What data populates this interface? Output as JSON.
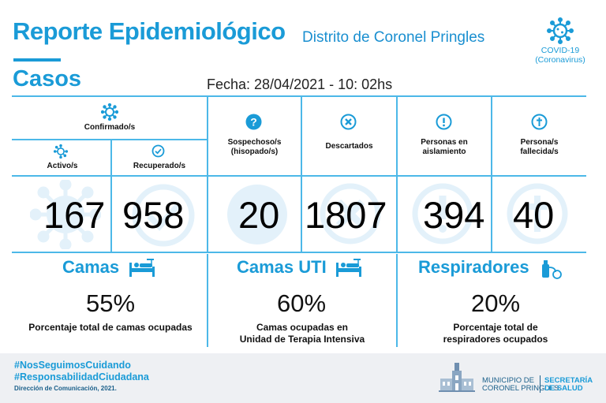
{
  "header": {
    "title": "Reporte Epidemiológico",
    "district": "Distrito de Coronel Pringles",
    "covid_line1": "COVID-19",
    "covid_line2": "(Coronavirus)",
    "section": "Casos",
    "fecha": "Fecha: 28/04/2021 - 10: 02hs"
  },
  "casos": {
    "confirmados_label": "Confirmado/s",
    "activos_label": "Activo/s",
    "recuperados_label": "Recuperado/s",
    "sospechosos_label_1": "Sospechoso/s",
    "sospechosos_label_2": "(hisopado/s)",
    "descartados_label": "Descartados",
    "aislamiento_label_1": "Personas en",
    "aislamiento_label_2": "aislamiento",
    "fallecidos_label_1": "Persona/s",
    "fallecidos_label_2": "fallecida/s",
    "activos": "167",
    "recuperados": "958",
    "sospechosos": "20",
    "descartados": "1807",
    "aislamiento": "394",
    "fallecidos": "40"
  },
  "capacidad": {
    "camas_title": "Camas",
    "camas_pct": "55%",
    "camas_desc": "Porcentaje total de camas ocupadas",
    "uti_title": "Camas UTI",
    "uti_pct": "60%",
    "uti_desc_1": "Camas ocupadas en",
    "uti_desc_2": "Unidad de Terapia Intensiva",
    "resp_title": "Respiradores",
    "resp_pct": "20%",
    "resp_desc_1": "Porcentaje total de",
    "resp_desc_2": "respiradores ocupados"
  },
  "footer": {
    "hashtag1": "#NosSeguimosCuidando",
    "hashtag2": "#ResponsabilidadCiudadana",
    "credit": "Dirección de Comunicación, 2021.",
    "muni_1": "MUNICIPIO DE",
    "muni_2": "CORONEL PRINGLES",
    "sec_1": "SECRETARÍA",
    "sec_2": "DE SALUD"
  },
  "colors": {
    "accent": "#1a9bd7",
    "line": "#4cb8e8",
    "footer_bg": "#eef0f3"
  }
}
